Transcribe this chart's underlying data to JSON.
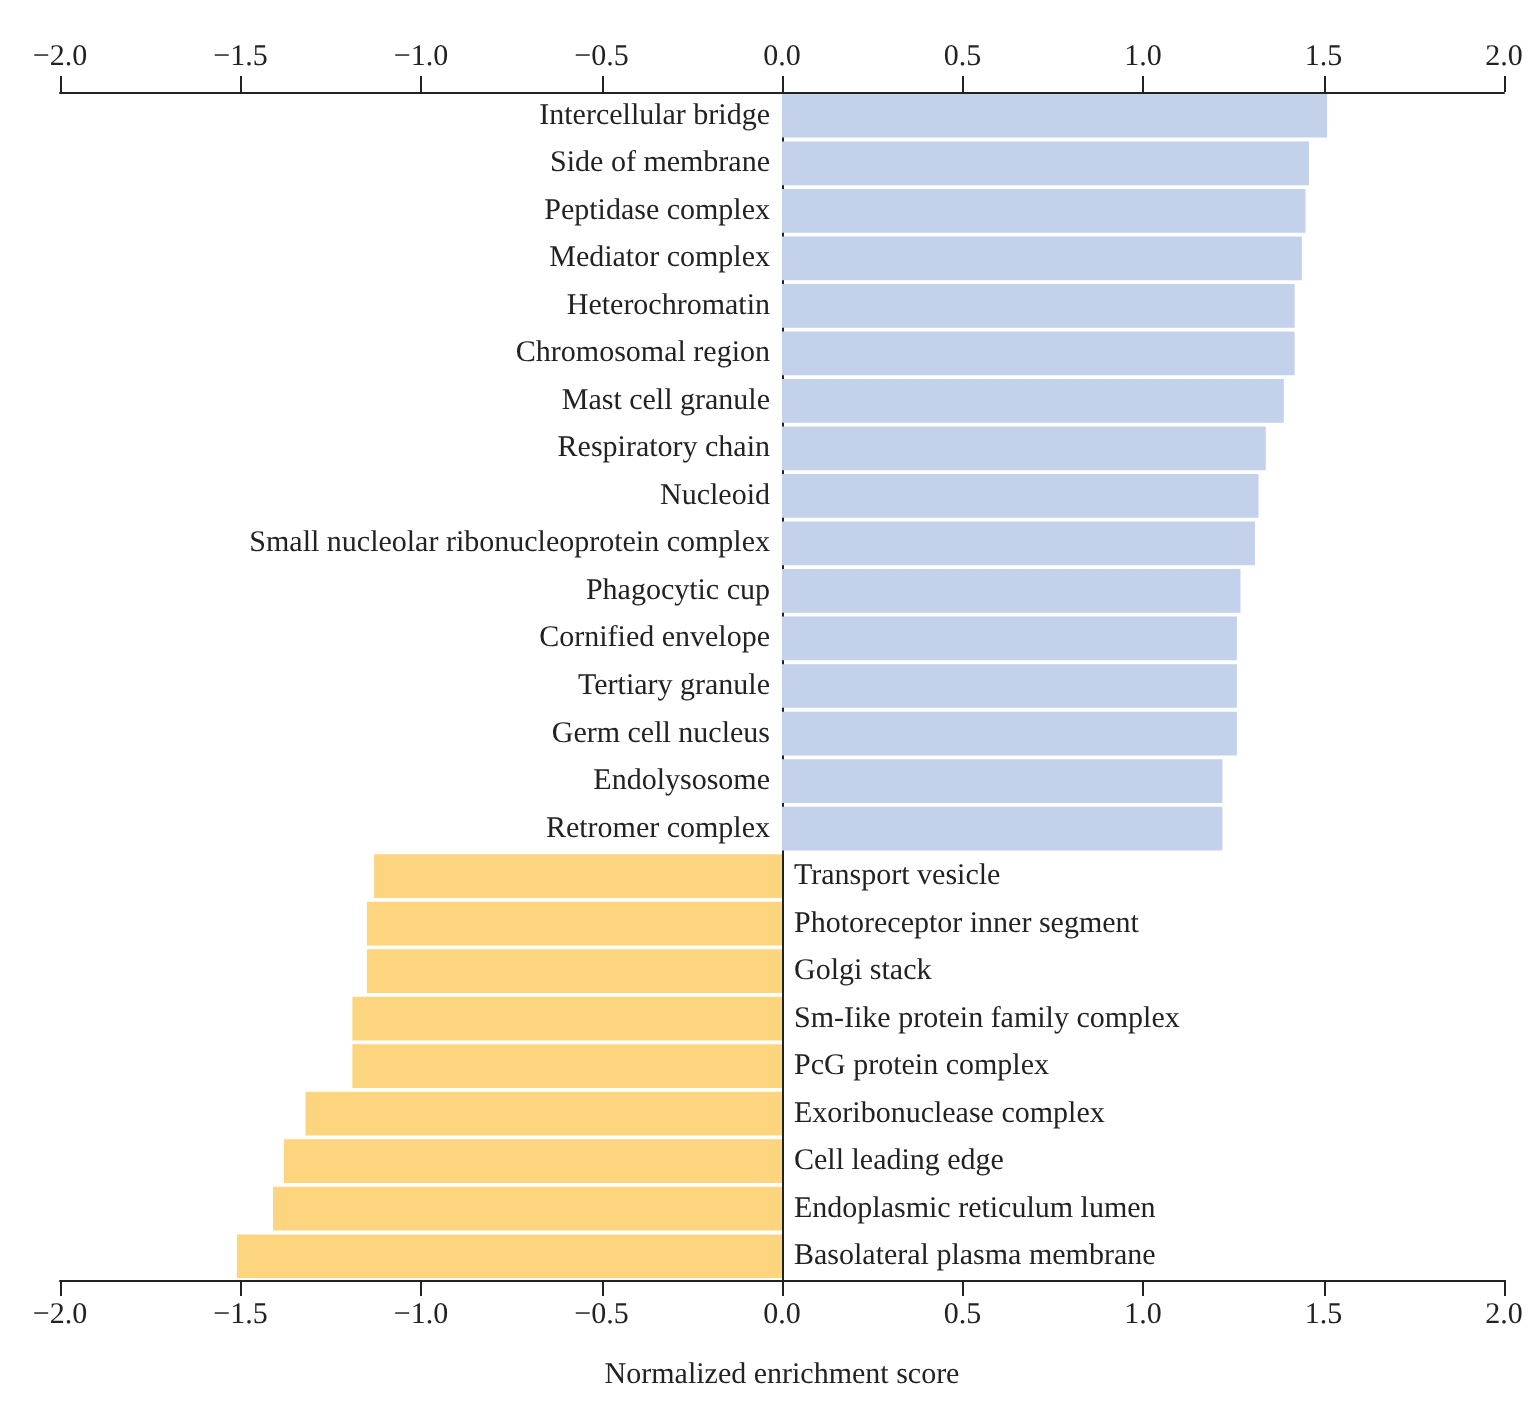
{
  "chart_data": {
    "type": "bar",
    "orientation": "horizontal",
    "xlabel": "Normalized enrichment score",
    "categories": [
      "Intercellular bridge",
      "Side of membrane",
      "Peptidase complex",
      "Mediator complex",
      "Heterochromatin",
      "Chromosomal region",
      "Mast cell granule",
      "Respiratory chain",
      "Nucleoid",
      "Small nucleolar ribonucleoprotein complex",
      "Phagocytic cup",
      "Cornified envelope",
      "Tertiary granule",
      "Germ cell nucleus",
      "Endolysosome",
      "Retromer complex",
      "Transport vesicle",
      "Photoreceptor inner segment",
      "Golgi stack",
      "Sm-Iike protein family complex",
      "PcG protein complex",
      "Exoribonuclease complex",
      "Cell leading edge",
      "Endoplasmic reticulum lumen",
      "Basolateral plasma membrane"
    ],
    "values": [
      1.51,
      1.46,
      1.45,
      1.44,
      1.42,
      1.42,
      1.39,
      1.34,
      1.32,
      1.31,
      1.27,
      1.26,
      1.26,
      1.26,
      1.22,
      1.22,
      -1.13,
      -1.15,
      -1.15,
      -1.19,
      -1.19,
      -1.32,
      -1.38,
      -1.41,
      -1.51
    ],
    "colors": [
      "#c3d1ea",
      "#c3d1ea",
      "#c3d1ea",
      "#c3d1ea",
      "#c3d1ea",
      "#c3d1ea",
      "#c3d1ea",
      "#c3d1ea",
      "#c3d1ea",
      "#c3d1ea",
      "#c3d1ea",
      "#c3d1ea",
      "#c3d1ea",
      "#c3d1ea",
      "#c3d1ea",
      "#c3d1ea",
      "#fdd57f",
      "#fdd57f",
      "#fdd57f",
      "#fdd57f",
      "#fdd57f",
      "#fdd57f",
      "#fdd57f",
      "#fdd57f",
      "#fdd57f"
    ],
    "xlim": [
      -2,
      2
    ],
    "xticks": [
      {
        "value": -2,
        "label": "−2.0"
      },
      {
        "value": -1.5,
        "label": "−1.5"
      },
      {
        "value": -1,
        "label": "−1.0"
      },
      {
        "value": -0.5,
        "label": "−0.5"
      },
      {
        "value": 0,
        "label": "0.0"
      },
      {
        "value": 0.5,
        "label": "0.5"
      },
      {
        "value": 1,
        "label": "1.0"
      },
      {
        "value": 1.5,
        "label": "1.5"
      },
      {
        "value": 2,
        "label": "2.0"
      }
    ],
    "x2lim": [
      -2,
      2
    ],
    "x2ticks": [
      {
        "value": -2,
        "label": "−2.0"
      },
      {
        "value": -1.5,
        "label": "−1.5"
      },
      {
        "value": -1,
        "label": "−1.0"
      },
      {
        "value": -0.5,
        "label": "−0.5"
      },
      {
        "value": 0,
        "label": "0.0"
      },
      {
        "value": 0.5,
        "label": "0.5"
      },
      {
        "value": 1,
        "label": "1.0"
      },
      {
        "value": 1.5,
        "label": "1.5"
      },
      {
        "value": 2,
        "label": "2.0"
      }
    ],
    "grid": false
  }
}
